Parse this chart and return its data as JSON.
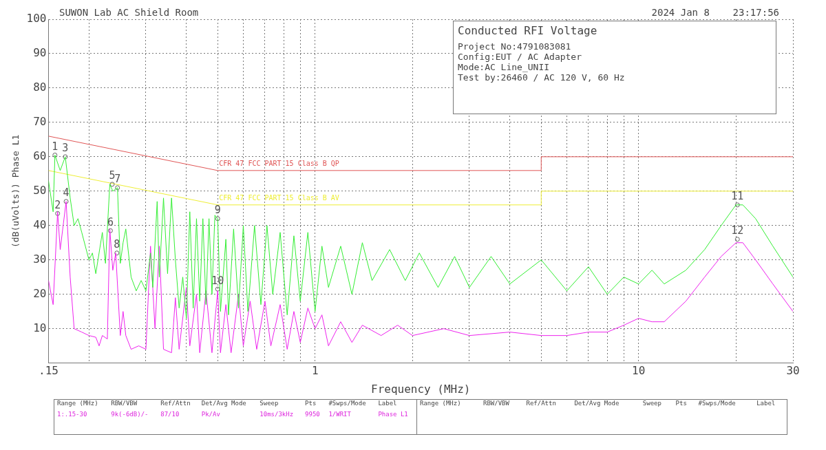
{
  "chart_data": {
    "type": "line",
    "title": "SUWON Lab AC Shield Room",
    "subtitle": "2024 Jan 8    23:17:56",
    "xlabel": "Frequency (MHz)",
    "ylabel": "(dB(uVolts)) Phase L1",
    "xlim": [
      0.15,
      30
    ],
    "xticks": [
      {
        "value": 0.15,
        "label": ".15"
      },
      {
        "value": 0.2,
        "label": null
      },
      {
        "value": 0.3,
        "label": null
      },
      {
        "value": 0.4,
        "label": null
      },
      {
        "value": 0.5,
        "label": null
      },
      {
        "value": 0.6,
        "label": null
      },
      {
        "value": 0.7,
        "label": null
      },
      {
        "value": 0.8,
        "label": null
      },
      {
        "value": 0.9,
        "label": null
      },
      1,
      {
        "value": 2,
        "label": null
      },
      {
        "value": 3,
        "label": null
      },
      {
        "value": 4,
        "label": null
      },
      {
        "value": 5,
        "label": null
      },
      {
        "value": 6,
        "label": null
      },
      {
        "value": 7,
        "label": null
      },
      {
        "value": 8,
        "label": null
      },
      {
        "value": 9,
        "label": null
      },
      10,
      {
        "value": 20,
        "label": null
      },
      30
    ],
    "ylim": [
      0,
      100
    ],
    "yticks": [
      {
        "value": 0,
        "label": null
      },
      10,
      20,
      30,
      40,
      50,
      60,
      70,
      80,
      90,
      100
    ],
    "grid": true,
    "legend": false,
    "marker": "none",
    "log": "x",
    "series": [
      {
        "color": "#33ee33",
        "x": [
          0.15,
          0.155,
          0.157,
          0.163,
          0.169,
          0.175,
          0.18,
          0.185,
          0.19,
          0.2,
          0.205,
          0.21,
          0.22,
          0.225,
          0.232,
          0.237,
          0.245,
          0.25,
          0.255,
          0.26,
          0.27,
          0.28,
          0.29,
          0.3,
          0.31,
          0.315,
          0.325,
          0.33,
          0.34,
          0.35,
          0.36,
          0.37,
          0.38,
          0.39,
          0.4,
          0.41,
          0.42,
          0.43,
          0.44,
          0.45,
          0.46,
          0.47,
          0.48,
          0.49,
          0.5,
          0.51,
          0.53,
          0.54,
          0.56,
          0.58,
          0.6,
          0.62,
          0.65,
          0.68,
          0.71,
          0.74,
          0.78,
          0.82,
          0.86,
          0.9,
          0.95,
          1,
          1.05,
          1.1,
          1.2,
          1.3,
          1.4,
          1.5,
          1.7,
          1.9,
          2.1,
          2.4,
          2.7,
          3,
          3.5,
          4,
          5,
          6,
          7,
          8,
          9,
          10,
          11,
          12,
          14,
          16,
          18,
          20,
          21,
          23,
          26,
          30
        ],
        "values": [
          53,
          44,
          60.5,
          56,
          60,
          48,
          40,
          42,
          38,
          30,
          32,
          26,
          38,
          29,
          52,
          50,
          51,
          29,
          35,
          39,
          25,
          21,
          24,
          21,
          32,
          22,
          47,
          25,
          48,
          26,
          48,
          30,
          16,
          25,
          13,
          44,
          16,
          42,
          18,
          42,
          17,
          42,
          20,
          43,
          42,
          15,
          36,
          14,
          39,
          16,
          40,
          15,
          40,
          17,
          40,
          20,
          38,
          14,
          37,
          18,
          38,
          15,
          34,
          22,
          34,
          20,
          35,
          24,
          33,
          24,
          32,
          22,
          31,
          22,
          31,
          23,
          30,
          21,
          28,
          20,
          25,
          23,
          27,
          23,
          27,
          33,
          40,
          46,
          46,
          42,
          34,
          25
        ]
      },
      {
        "color": "#ee22ee",
        "x": [
          0.15,
          0.155,
          0.16,
          0.163,
          0.17,
          0.175,
          0.18,
          0.19,
          0.2,
          0.21,
          0.215,
          0.22,
          0.228,
          0.232,
          0.237,
          0.242,
          0.25,
          0.255,
          0.26,
          0.27,
          0.285,
          0.3,
          0.31,
          0.32,
          0.33,
          0.34,
          0.36,
          0.37,
          0.38,
          0.4,
          0.41,
          0.43,
          0.44,
          0.46,
          0.48,
          0.5,
          0.51,
          0.53,
          0.55,
          0.58,
          0.6,
          0.63,
          0.66,
          0.7,
          0.73,
          0.78,
          0.82,
          0.86,
          0.9,
          0.95,
          1,
          1.05,
          1.1,
          1.2,
          1.3,
          1.4,
          1.6,
          1.8,
          2,
          2.5,
          3,
          4,
          5,
          6,
          7,
          8,
          9,
          10,
          11,
          12,
          14,
          16,
          18,
          20,
          21,
          23,
          26,
          30
        ],
        "values": [
          24,
          17,
          44,
          33,
          47,
          25,
          10,
          9,
          8,
          7.5,
          5,
          8,
          7,
          39,
          27,
          32,
          8,
          15,
          8,
          4,
          5,
          4,
          34,
          10,
          34,
          4,
          3,
          19,
          4,
          22,
          5,
          20,
          3,
          21,
          3,
          21,
          3,
          17,
          3,
          20,
          5,
          18,
          4,
          18,
          5,
          17,
          4,
          15,
          6,
          16,
          10,
          14,
          5,
          12,
          6,
          11,
          8,
          11,
          8,
          10,
          8,
          9,
          8,
          8,
          9,
          9,
          11,
          13,
          12,
          12,
          18,
          25,
          31,
          35,
          35,
          30,
          23,
          15
        ]
      },
      {
        "type": "scatter",
        "marker": "circle",
        "color": "#666666",
        "x": [
          0.157,
          0.16,
          0.169,
          0.17,
          0.236,
          0.233,
          0.245,
          0.244,
          0.5,
          0.5,
          20.2,
          20.2
        ],
        "values": [
          60.5,
          43.5,
          60,
          47,
          52,
          38.5,
          51,
          32,
          42,
          21.5,
          46,
          36
        ]
      },
      {
        "name": "CFR 47 FCC PART 15 Class B QP",
        "color": "#e05555",
        "x": [
          0.15,
          0.5,
          5,
          5,
          30
        ],
        "values": [
          66,
          56,
          56,
          60,
          60
        ]
      },
      {
        "name": "CFR 47 FCC PART 15 Class B AV",
        "color": "#eeee33",
        "x": [
          0.15,
          0.5,
          5,
          5,
          30
        ],
        "values": [
          56,
          46,
          46,
          50,
          50
        ]
      }
    ],
    "annotations": [
      {
        "text": "1",
        "x": 0.157,
        "y": 60.5
      },
      {
        "text": "2",
        "x": 0.16,
        "y": 43.5
      },
      {
        "text": "3",
        "x": 0.169,
        "y": 60
      },
      {
        "text": "4",
        "x": 0.17,
        "y": 47
      },
      {
        "text": "5",
        "x": 0.236,
        "y": 52
      },
      {
        "text": "6",
        "x": 0.233,
        "y": 38.5
      },
      {
        "text": "7",
        "x": 0.245,
        "y": 51
      },
      {
        "text": "8",
        "x": 0.244,
        "y": 32
      },
      {
        "text": "9",
        "x": 0.5,
        "y": 42
      },
      {
        "text": "10",
        "x": 0.5,
        "y": 21.5
      },
      {
        "text": "11",
        "x": 20.2,
        "y": 46
      },
      {
        "text": "12",
        "x": 20.2,
        "y": 36
      },
      "Conducted RFI Voltage",
      "Project No:4791083081",
      "Config:EUT / AC Adapter",
      "Mode:AC Line_UNII",
      "Test by:26460 / AC 120 V, 60 Hz",
      "Range (MHz)",
      "RBW/VBW",
      "Ref/Attn",
      "Det/Avg Mode",
      "Sweep",
      "Pts",
      "#Swps/Mode",
      "Label",
      "1:.15-30",
      "9k(-6dB)/-",
      "87/10",
      "Pk/Av",
      "10ms/3kHz",
      "9950",
      "1/WRIT",
      "Phase L1",
      "Range (MHz)",
      "RBW/VBW",
      "Ref/Attn",
      "Det/Avg Mode",
      "Sweep",
      "Pts",
      "#Swps/Mode",
      "Label"
    ]
  }
}
